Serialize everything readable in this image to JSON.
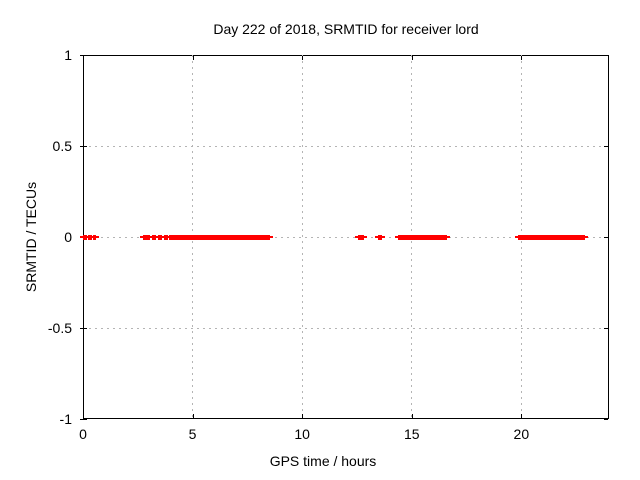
{
  "chart_data": {
    "type": "scatter",
    "title": "Day 222 of 2018, SRMTID for receiver lord",
    "xlabel": "GPS time / hours",
    "ylabel": "SRMTID / TECUs",
    "xlim": [
      0,
      24
    ],
    "ylim": [
      -1,
      1
    ],
    "x_ticks": [
      0,
      5,
      10,
      15,
      20
    ],
    "x_tick_labels": [
      "0",
      "5",
      "10",
      "15",
      "20"
    ],
    "y_ticks": [
      1,
      0.5,
      0,
      -0.5,
      -1
    ],
    "y_tick_labels": [
      "1",
      "0.5",
      "0",
      "-0.5",
      "-1"
    ],
    "grid": true,
    "legend": "none",
    "colors": {
      "series": "#ff0000",
      "grid": "#b4b4b4",
      "border": "#000000",
      "background": "#ffffff"
    },
    "series": [
      {
        "name": "SRMTID",
        "marker": "plus",
        "color": "#ff0000",
        "y_value": 0,
        "x_segments_hours": [
          [
            0.0,
            0.18
          ],
          [
            0.23,
            0.41
          ],
          [
            0.46,
            0.6
          ],
          [
            2.72,
            3.05
          ],
          [
            3.14,
            3.33
          ],
          [
            3.42,
            3.6
          ],
          [
            3.7,
            3.88
          ],
          [
            3.93,
            8.55
          ],
          [
            12.54,
            12.82
          ],
          [
            13.46,
            13.64
          ],
          [
            14.37,
            16.6
          ],
          [
            19.85,
            22.9
          ]
        ],
        "note": "dense clusters of point markers, all at SRMTID = 0 TECUs"
      }
    ]
  }
}
